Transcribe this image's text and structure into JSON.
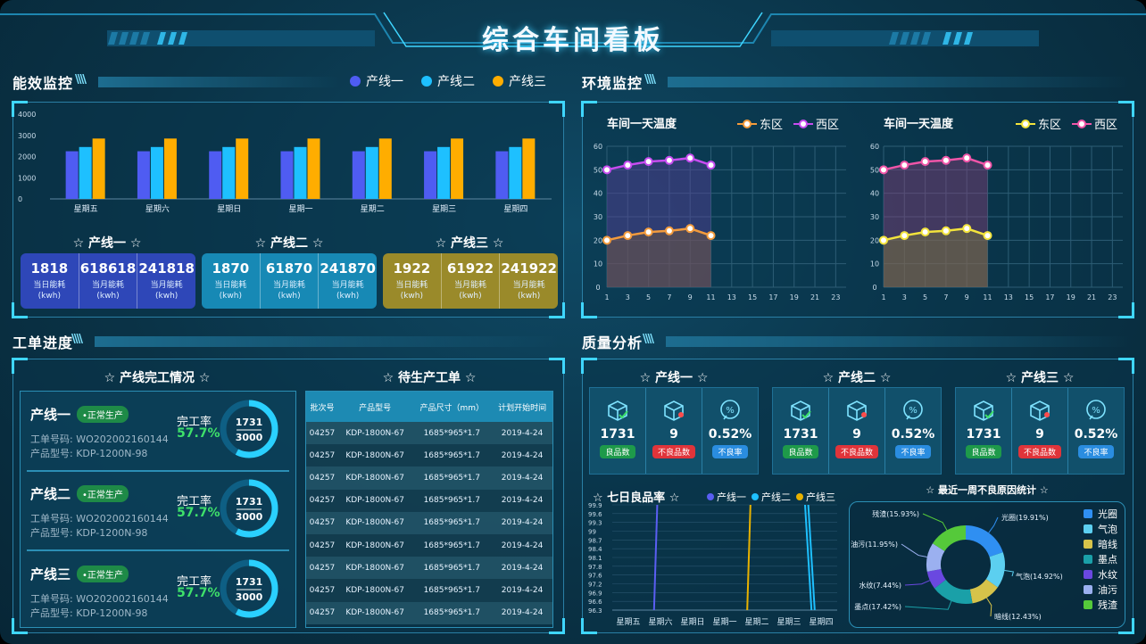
{
  "header": {
    "title": "综合车间看板"
  },
  "energy": {
    "section_title": "能效监控",
    "legend": [
      {
        "label": "产线一",
        "color": "#4f5cf2"
      },
      {
        "label": "产线二",
        "color": "#1ec0ff"
      },
      {
        "label": "产线三",
        "color": "#ffad00"
      }
    ],
    "lines": [
      {
        "title": "☆ 产线一 ☆",
        "color": "#2e47b8",
        "stats": [
          {
            "value": "1818",
            "label1": "当日能耗",
            "label2": "(kwh)"
          },
          {
            "value": "618618",
            "label1": "当月能耗",
            "label2": "(kwh)"
          },
          {
            "value": "241818",
            "label1": "当月能耗",
            "label2": "(kwh)"
          }
        ]
      },
      {
        "title": "☆ 产线二 ☆",
        "color": "#1789b5",
        "stats": [
          {
            "value": "1870",
            "label1": "当日能耗",
            "label2": "(kwh)"
          },
          {
            "value": "61870",
            "label1": "当月能耗",
            "label2": "(kwh)"
          },
          {
            "value": "241870",
            "label1": "当月能耗",
            "label2": "(kwh)"
          }
        ]
      },
      {
        "title": "☆ 产线三 ☆",
        "color": "#9a8a2a",
        "stats": [
          {
            "value": "1922",
            "label1": "当日能耗",
            "label2": "(kwh)"
          },
          {
            "value": "61922",
            "label1": "当月能耗",
            "label2": "(kwh)"
          },
          {
            "value": "241922",
            "label1": "当月能耗",
            "label2": "(kwh)"
          }
        ]
      }
    ]
  },
  "env": {
    "section_title": "环境监控",
    "charts": [
      {
        "title": "车间一天温度",
        "legend": [
          {
            "label": "东区",
            "color": "#f39b3c"
          },
          {
            "label": "西区",
            "color": "#c74cf0"
          }
        ]
      },
      {
        "title": "车间一天温度",
        "legend": [
          {
            "label": "东区",
            "color": "#f3e43c"
          },
          {
            "label": "西区",
            "color": "#f055a8"
          }
        ]
      }
    ]
  },
  "orders": {
    "section_title": "工单进度",
    "completion_title": "☆ 产线完工情况 ☆",
    "pending_title": "☆ 待生产工单 ☆",
    "lines": [
      {
        "name": "产线一",
        "status": "•正常生产",
        "order_no": "工单号码:  WO202002160144",
        "model": "产品型号:  KDP-1200N-98",
        "rate_label": "完工率",
        "rate": "57.7%",
        "done": "1731",
        "total": "3000"
      },
      {
        "name": "产线二",
        "status": "•正常生产",
        "order_no": "工单号码:  WO202002160144",
        "model": "产品型号:  KDP-1200N-98",
        "rate_label": "完工率",
        "rate": "57.7%",
        "done": "1731",
        "total": "3000"
      },
      {
        "name": "产线三",
        "status": "•正常生产",
        "order_no": "工单号码:  WO202002160144",
        "model": "产品型号:  KDP-1200N-98",
        "rate_label": "完工率",
        "rate": "57.7%",
        "done": "1731",
        "total": "3000"
      }
    ],
    "progress_fraction": 0.577,
    "table": {
      "headers": [
        "批次号",
        "产品型号",
        "产品尺寸（mm）",
        "计划开始时间"
      ],
      "rows": [
        [
          "04257",
          "KDP-1800N-67",
          "1685*965*1.7",
          "2019-4-24"
        ],
        [
          "04257",
          "KDP-1800N-67",
          "1685*965*1.7",
          "2019-4-24"
        ],
        [
          "04257",
          "KDP-1800N-67",
          "1685*965*1.7",
          "2019-4-24"
        ],
        [
          "04257",
          "KDP-1800N-67",
          "1685*965*1.7",
          "2019-4-24"
        ],
        [
          "04257",
          "KDP-1800N-67",
          "1685*965*1.7",
          "2019-4-24"
        ],
        [
          "04257",
          "KDP-1800N-67",
          "1685*965*1.7",
          "2019-4-24"
        ],
        [
          "04257",
          "KDP-1800N-67",
          "1685*965*1.7",
          "2019-4-24"
        ],
        [
          "04257",
          "KDP-1800N-67",
          "1685*965*1.7",
          "2019-4-24"
        ],
        [
          "04257",
          "KDP-1800N-67",
          "1685*965*1.7",
          "2019-4-24"
        ]
      ]
    }
  },
  "quality": {
    "section_title": "质量分析",
    "lines": [
      {
        "title": "☆ 产线一 ☆",
        "good": "1731",
        "good_label": "良品数",
        "bad": "9",
        "bad_label": "不良品数",
        "rate": "0.52%",
        "rate_label": "不良率"
      },
      {
        "title": "☆ 产线二 ☆",
        "good": "1731",
        "good_label": "良品数",
        "bad": "9",
        "bad_label": "不良品数",
        "rate": "0.52%",
        "rate_label": "不良率"
      },
      {
        "title": "☆ 产线三 ☆",
        "good": "1731",
        "good_label": "良品数",
        "bad": "9",
        "bad_label": "不良品数",
        "rate": "0.52%",
        "rate_label": "不良率"
      }
    ],
    "seven_day_title": "☆ 七日良品率 ☆",
    "seven_day_legend": [
      {
        "label": "产线一",
        "color": "#5a5ef2"
      },
      {
        "label": "产线二",
        "color": "#1ec0ff"
      },
      {
        "label": "产线三",
        "color": "#e8b200"
      }
    ],
    "defect_title": "☆ 最近一周不良原因统计 ☆",
    "icon_names": [
      "box-check-icon",
      "box-defect-icon",
      "percent-icon"
    ]
  },
  "chart_data": [
    {
      "type": "bar",
      "categories": [
        "星期五",
        "星期六",
        "星期日",
        "星期一",
        "星期二",
        "星期三",
        "星期四"
      ],
      "series": [
        {
          "name": "产线一",
          "values": [
            2250,
            2250,
            2250,
            2250,
            2250,
            2250,
            2250
          ]
        },
        {
          "name": "产线二",
          "values": [
            2450,
            2450,
            2450,
            2450,
            2450,
            2450,
            2450
          ]
        },
        {
          "name": "产线三",
          "values": [
            2850,
            2850,
            2850,
            2850,
            2850,
            2850,
            2850
          ]
        }
      ],
      "yticks": [
        "4000",
        "3000",
        "2000",
        "1000",
        "0"
      ],
      "ylim": [
        0,
        4000
      ]
    },
    {
      "type": "area",
      "title": "车间一天温度",
      "x": [
        1,
        3,
        5,
        7,
        9,
        11
      ],
      "xticks": [
        "1",
        "3",
        "5",
        "7",
        "9",
        "11",
        "13",
        "15",
        "17",
        "19",
        "21",
        "23"
      ],
      "yticks": [
        "60",
        "50",
        "40",
        "30",
        "20",
        "10",
        "0"
      ],
      "ylim": [
        0,
        60
      ],
      "xlim": [
        1,
        24
      ],
      "series": [
        {
          "name": "东区",
          "values": [
            20,
            22,
            23.5,
            24,
            25,
            22
          ]
        },
        {
          "name": "西区",
          "values": [
            50,
            52,
            53.5,
            54,
            55,
            52
          ]
        }
      ]
    },
    {
      "type": "area",
      "title": "车间一天温度",
      "x": [
        1,
        3,
        5,
        7,
        9,
        11
      ],
      "xticks": [
        "1",
        "3",
        "5",
        "7",
        "9",
        "11",
        "13",
        "15",
        "17",
        "19",
        "21",
        "23"
      ],
      "yticks": [
        "60",
        "50",
        "40",
        "30",
        "20",
        "10",
        "0"
      ],
      "ylim": [
        0,
        60
      ],
      "xlim": [
        1,
        24
      ],
      "series": [
        {
          "name": "东区",
          "values": [
            20,
            22,
            23.5,
            24,
            25,
            22
          ]
        },
        {
          "name": "西区",
          "values": [
            50,
            52,
            53.5,
            54,
            55,
            52
          ]
        }
      ]
    },
    {
      "type": "line",
      "title": "☆ 七日良品率 ☆",
      "categories": [
        "星期五",
        "星期六",
        "星期日",
        "星期一",
        "星期二",
        "星期三",
        "星期四"
      ],
      "yticks": [
        "99.9",
        "99.6",
        "99.3",
        "99",
        "98.7",
        "98.4",
        "98.1",
        "97.8",
        "97.6",
        "97.2",
        "96.9",
        "96.6",
        "96.3"
      ],
      "segments": [
        {
          "name": "产线一",
          "x": [
            1.4,
            1.3
          ]
        },
        {
          "name": "产线三",
          "x": [
            4.3,
            4.2
          ]
        },
        {
          "name": "产线二",
          "x": [
            6.0,
            6.2
          ]
        },
        {
          "name": "产线二",
          "x": [
            6.1,
            6.3
          ]
        }
      ]
    },
    {
      "type": "pie",
      "title": "☆ 最近一周不良原因统计 ☆",
      "slices": [
        {
          "label": "光圈",
          "value": 19.91,
          "text": "光圈(19.91%)",
          "color": "#2f8ff2"
        },
        {
          "label": "气泡",
          "value": 14.92,
          "text": "气泡(14.92%)",
          "color": "#5ccff0"
        },
        {
          "label": "暗线",
          "value": 12.43,
          "text": "暗线(12.43%)",
          "color": "#d6c34a"
        },
        {
          "label": "墨点",
          "value": 17.42,
          "text": "墨点(17.42%)",
          "color": "#1aa0a8"
        },
        {
          "label": "水纹",
          "value": 7.44,
          "text": "水纹(7.44%)",
          "color": "#6a48e0"
        },
        {
          "label": "油污",
          "value": 11.95,
          "text": "油污(11.95%)",
          "color": "#9bb0f0"
        },
        {
          "label": "残渣",
          "value": 15.93,
          "text": "残渣(15.93%)",
          "color": "#55c93a"
        }
      ]
    }
  ]
}
